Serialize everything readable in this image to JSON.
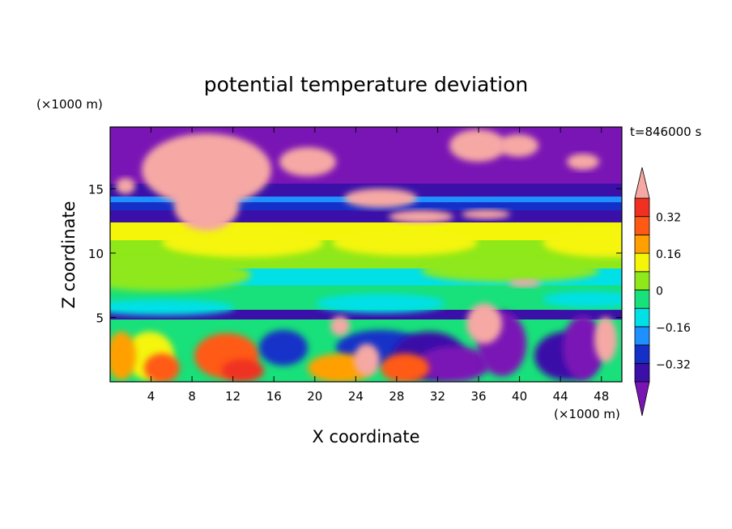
{
  "chart_data": {
    "type": "heatmap",
    "title": "potential temperature deviation",
    "time_label": "t=846000 s",
    "xlabel": "X coordinate",
    "ylabel": "Z coordinate",
    "x_unit": "(×1000 m)",
    "y_unit": "(×1000 m)",
    "xlim": [
      0,
      50
    ],
    "ylim": [
      0,
      19.8
    ],
    "x_ticks": [
      4,
      8,
      12,
      16,
      20,
      24,
      28,
      32,
      36,
      40,
      44,
      48
    ],
    "x_tick_labels": [
      "4",
      "8",
      "12",
      "16",
      "20",
      "24",
      "28",
      "32",
      "36",
      "40",
      "44",
      "48"
    ],
    "y_ticks": [
      5,
      10,
      15
    ],
    "y_tick_labels": [
      "5",
      "10",
      "15"
    ],
    "colorbar": {
      "levels": [
        -0.4,
        -0.32,
        -0.24,
        -0.16,
        -0.08,
        0,
        0.08,
        0.16,
        0.24,
        0.32,
        0.4
      ],
      "labeled_values": [
        0.32,
        0.16,
        0,
        -0.16,
        -0.32
      ],
      "labels": [
        "0.32",
        "0.16",
        "0",
        "−0.16",
        "−0.32"
      ],
      "colors_low_to_high": [
        "#7a15b5",
        "#3a10a8",
        "#1530c8",
        "#1e90ff",
        "#00e0e6",
        "#18e07a",
        "#8ee81a",
        "#f5f50a",
        "#ffa000",
        "#ff5a14",
        "#f03020",
        "#f5a8a4"
      ],
      "extend": "both"
    }
  }
}
